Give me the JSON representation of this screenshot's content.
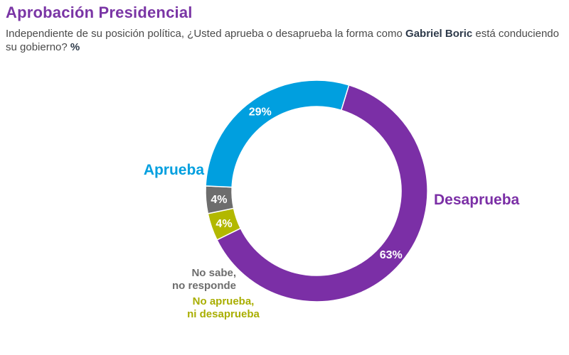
{
  "title": "Aprobación Presidencial",
  "subtitle": {
    "before": "Independiente de su posición política, ¿Usted aprueba o desaprueba la forma como ",
    "name": "Gabriel Boric",
    "after": " está conduciendo su gobierno? ",
    "unit": "%"
  },
  "chart_data": {
    "type": "pie",
    "donut": true,
    "slices": [
      {
        "name": "Desaprueba",
        "value": 63,
        "label": "63%",
        "color": "#7b2fa6"
      },
      {
        "name": "No aprueba, ni desaprueba",
        "label_lines": [
          "No aprueba,",
          "ni desaprueba"
        ],
        "value": 4,
        "label": "4%",
        "color": "#b2b800"
      },
      {
        "name": "No sabe, no responde",
        "label_lines": [
          "No sabe,",
          "no responde"
        ],
        "value": 4,
        "label": "4%",
        "color": "#6d6d6d"
      },
      {
        "name": "Aprueba",
        "value": 29,
        "label": "29%",
        "color": "#009fdf"
      }
    ],
    "label_colors": {
      "Desaprueba": "#7b2fa6",
      "Aprueba": "#009fdf",
      "No sabe, no responde": "#6d6d6d",
      "No aprueba, ni desaprueba": "#a9ae00"
    }
  }
}
